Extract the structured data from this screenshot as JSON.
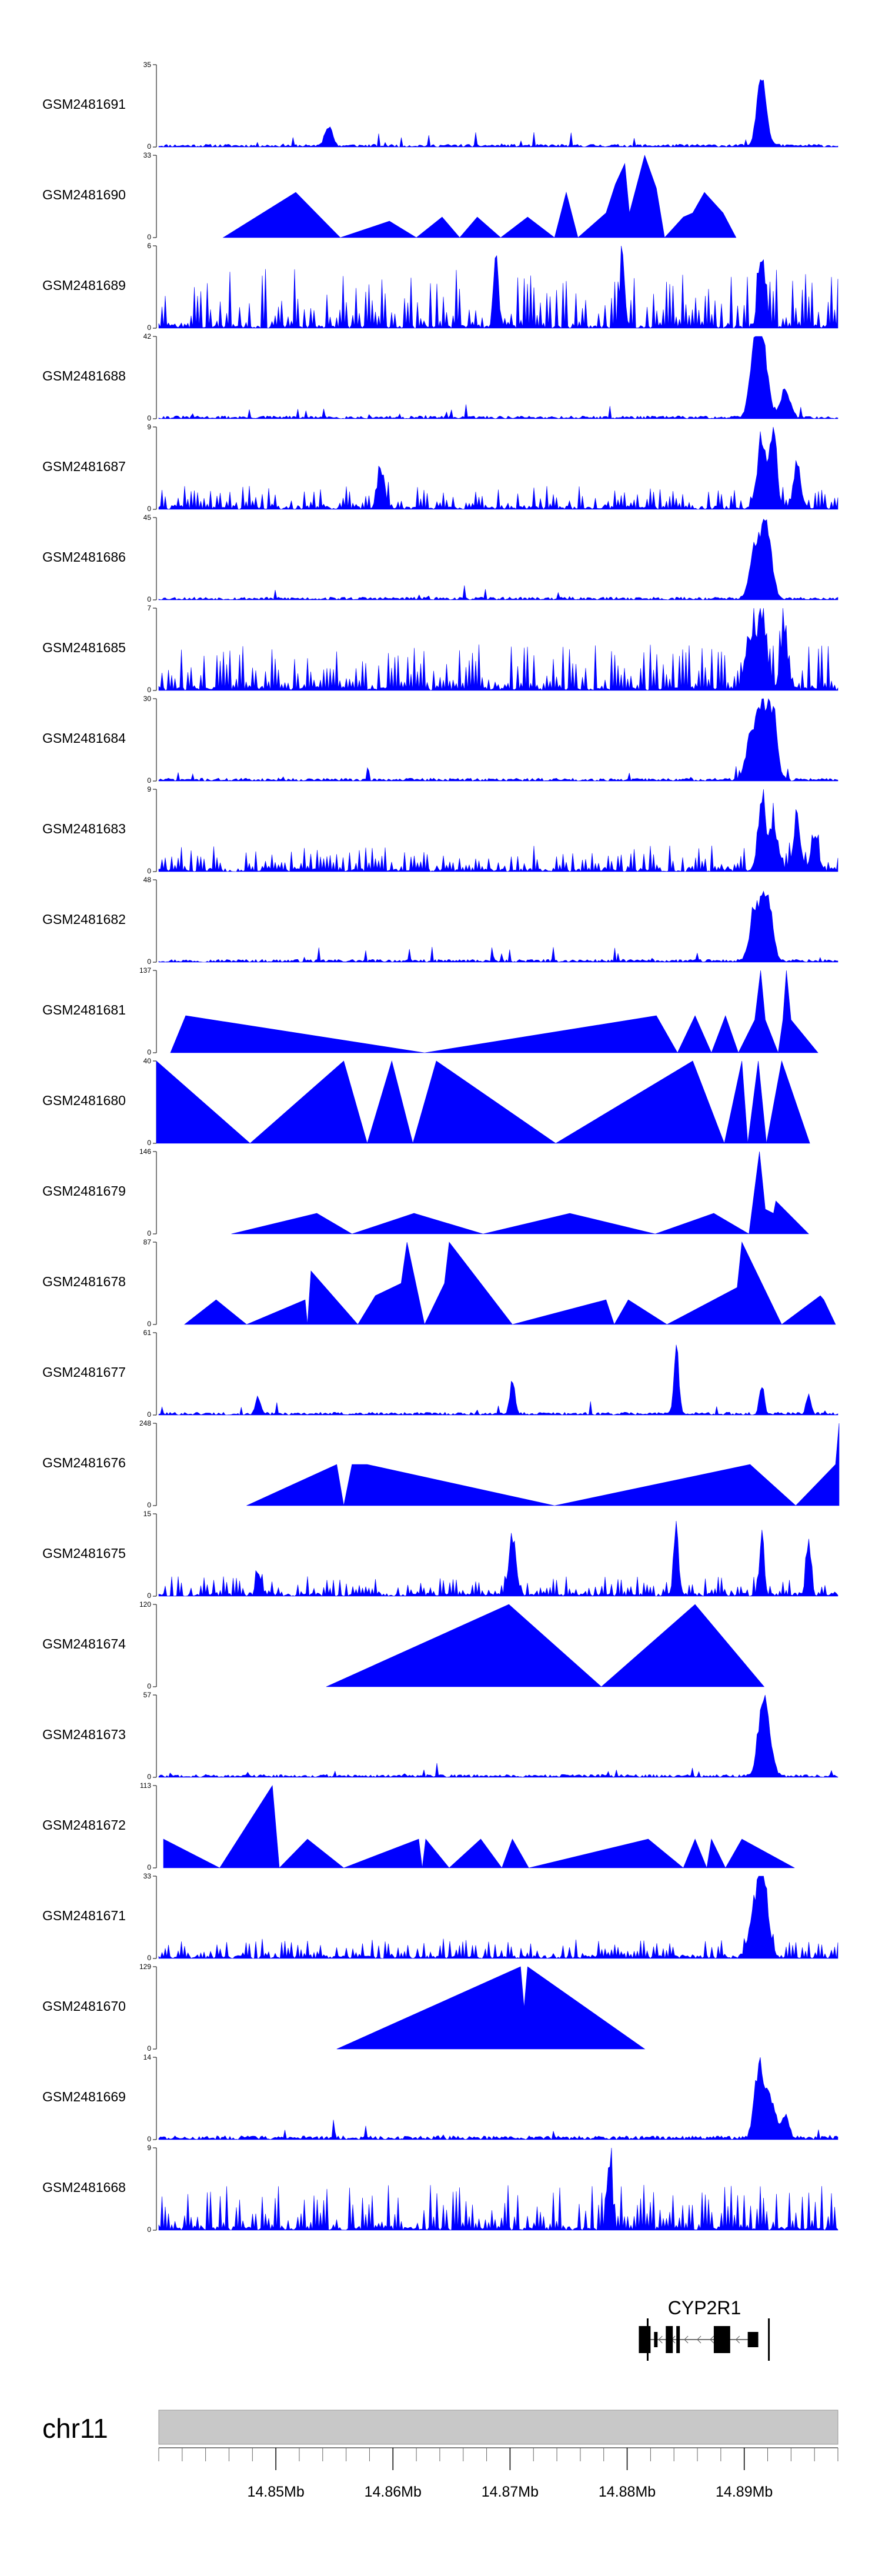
{
  "chart_data": {
    "type": "area",
    "title": "",
    "x_range": [
      14.84,
      14.898
    ],
    "x_unit": "Mb",
    "color": "#0000ff",
    "tracks": [
      {
        "label": "GSM2481691",
        "ymax": "35",
        "profile": "peaky",
        "seed": 11,
        "peaks": [
          [
            14.8915,
            1.0,
            0.0004
          ],
          [
            14.8545,
            0.3,
            0.0003
          ]
        ]
      },
      {
        "label": "GSM2481690",
        "ymax": "33",
        "profile": "triangles",
        "points": [
          [
            14.8455,
            0
          ],
          [
            14.8517,
            0.55
          ],
          [
            14.8555,
            0
          ],
          [
            14.8597,
            0.2
          ],
          [
            14.862,
            0
          ],
          [
            14.8642,
            0.25
          ],
          [
            14.8657,
            0
          ],
          [
            14.8672,
            0.25
          ],
          [
            14.8692,
            0
          ],
          [
            14.8715,
            0.25
          ],
          [
            14.8738,
            0
          ],
          [
            14.8748,
            0.55
          ],
          [
            14.8758,
            0
          ],
          [
            14.8782,
            0.3
          ],
          [
            14.879,
            0.65
          ],
          [
            14.8798,
            0.9
          ],
          [
            14.8802,
            0.3
          ],
          [
            14.8815,
            1.0
          ],
          [
            14.8825,
            0.6
          ],
          [
            14.8832,
            0
          ],
          [
            14.8848,
            0.25
          ],
          [
            14.8856,
            0.3
          ],
          [
            14.8866,
            0.55
          ],
          [
            14.8882,
            0.3
          ],
          [
            14.8893,
            0
          ]
        ]
      },
      {
        "label": "GSM2481689",
        "ymax": "6",
        "profile": "dense",
        "seed": 23,
        "base": 0.45,
        "peaks": [
          [
            14.8688,
            1.0,
            0.0002
          ],
          [
            14.8796,
            0.9,
            0.0002
          ],
          [
            14.8915,
            1.0,
            0.0003
          ]
        ]
      },
      {
        "label": "GSM2481688",
        "ymax": "42",
        "profile": "peaky",
        "seed": 31,
        "peaks": [
          [
            14.8915,
            1.0,
            0.0005
          ],
          [
            14.8908,
            0.65,
            0.0004
          ],
          [
            14.8935,
            0.4,
            0.0004
          ]
        ]
      },
      {
        "label": "GSM2481687",
        "ymax": "9",
        "profile": "dense",
        "seed": 41,
        "base": 0.18,
        "peaks": [
          [
            14.8915,
            0.9,
            0.0004
          ],
          [
            14.8925,
            1.0,
            0.0003
          ],
          [
            14.8945,
            0.6,
            0.0003
          ],
          [
            14.859,
            0.5,
            0.0003
          ]
        ]
      },
      {
        "label": "GSM2481686",
        "ymax": "45",
        "profile": "peaky",
        "seed": 53,
        "peaks": [
          [
            14.8918,
            1.0,
            0.0005
          ],
          [
            14.8908,
            0.55,
            0.0004
          ]
        ]
      },
      {
        "label": "GSM2481685",
        "ymax": "7",
        "profile": "dense",
        "seed": 61,
        "base": 0.35,
        "peaks": [
          [
            14.8915,
            1.0,
            0.0004
          ],
          [
            14.8905,
            0.7,
            0.0004
          ],
          [
            14.8934,
            0.8,
            0.0003
          ]
        ]
      },
      {
        "label": "GSM2481684",
        "ymax": "30",
        "profile": "peaky",
        "seed": 71,
        "peaks": [
          [
            14.8915,
            1.0,
            0.0005
          ],
          [
            14.8924,
            0.8,
            0.0004
          ],
          [
            14.8905,
            0.5,
            0.0004
          ]
        ]
      },
      {
        "label": "GSM2481683",
        "ymax": "9",
        "profile": "dense",
        "seed": 83,
        "base": 0.2,
        "peaks": [
          [
            14.8915,
            1.0,
            0.0003
          ],
          [
            14.8925,
            0.6,
            0.0004
          ],
          [
            14.8945,
            0.7,
            0.0003
          ],
          [
            14.896,
            0.5,
            0.0003
          ]
        ]
      },
      {
        "label": "GSM2481682",
        "ymax": "48",
        "profile": "peaky",
        "seed": 97,
        "peaks": [
          [
            14.8918,
            1.0,
            0.0005
          ],
          [
            14.8908,
            0.5,
            0.0004
          ]
        ]
      },
      {
        "label": "GSM2481681",
        "ymax": "137",
        "profile": "triangles",
        "points": [
          [
            14.841,
            0
          ],
          [
            14.8423,
            0.45
          ],
          [
            14.8627,
            0
          ],
          [
            14.8825,
            0.45
          ],
          [
            14.8843,
            0
          ],
          [
            14.8858,
            0.45
          ],
          [
            14.8872,
            0
          ],
          [
            14.8884,
            0.45
          ],
          [
            14.8895,
            0
          ],
          [
            14.8909,
            0.4
          ],
          [
            14.8914,
            1.0
          ],
          [
            14.8918,
            0.4
          ],
          [
            14.8929,
            0
          ],
          [
            14.8933,
            0.4
          ],
          [
            14.8936,
            1.0
          ],
          [
            14.894,
            0.4
          ],
          [
            14.8963,
            0
          ]
        ]
      },
      {
        "label": "GSM2481680",
        "ymax": "40",
        "profile": "triangles",
        "points": [
          [
            14.8398,
            1.0
          ],
          [
            14.8478,
            0
          ],
          [
            14.8558,
            1.0
          ],
          [
            14.8578,
            0
          ],
          [
            14.8599,
            1.0
          ],
          [
            14.8617,
            0
          ],
          [
            14.8637,
            1.0
          ],
          [
            14.8739,
            0
          ],
          [
            14.8856,
            1.0
          ],
          [
            14.8883,
            0
          ],
          [
            14.8898,
            1.0
          ],
          [
            14.8903,
            0
          ],
          [
            14.8912,
            1.0
          ],
          [
            14.8919,
            0
          ],
          [
            14.8932,
            1.0
          ],
          [
            14.8956,
            0
          ]
        ]
      },
      {
        "label": "GSM2481679",
        "ymax": "146",
        "profile": "triangles",
        "points": [
          [
            14.8462,
            0
          ],
          [
            14.8535,
            0.25
          ],
          [
            14.8565,
            0
          ],
          [
            14.8618,
            0.25
          ],
          [
            14.8677,
            0
          ],
          [
            14.8751,
            0.25
          ],
          [
            14.8824,
            0
          ],
          [
            14.8874,
            0.25
          ],
          [
            14.8904,
            0
          ],
          [
            14.8913,
            1.0
          ],
          [
            14.8918,
            0.3
          ],
          [
            14.8925,
            0.25
          ],
          [
            14.8927,
            0.4
          ],
          [
            14.8955,
            0
          ]
        ]
      },
      {
        "label": "GSM2481678",
        "ymax": "87",
        "profile": "triangles",
        "points": [
          [
            14.8422,
            0
          ],
          [
            14.8449,
            0.3
          ],
          [
            14.8475,
            0
          ],
          [
            14.8525,
            0.3
          ],
          [
            14.8527,
            0
          ],
          [
            14.853,
            0.65
          ],
          [
            14.857,
            0
          ],
          [
            14.8585,
            0.35
          ],
          [
            14.8607,
            0.5
          ],
          [
            14.8612,
            1.0
          ],
          [
            14.8627,
            0
          ],
          [
            14.8644,
            0.5
          ],
          [
            14.8648,
            1.0
          ],
          [
            14.8702,
            0
          ],
          [
            14.8782,
            0.3
          ],
          [
            14.8789,
            0
          ],
          [
            14.8801,
            0.3
          ],
          [
            14.8834,
            0
          ],
          [
            14.8894,
            0.45
          ],
          [
            14.8898,
            1.0
          ],
          [
            14.8932,
            0
          ],
          [
            14.8965,
            0.35
          ],
          [
            14.8968,
            0.3
          ],
          [
            14.8978,
            0
          ]
        ]
      },
      {
        "label": "GSM2481677",
        "ymax": "61",
        "profile": "peaky",
        "seed": 101,
        "peaks": [
          [
            14.8842,
            1.0,
            0.0002
          ],
          [
            14.8702,
            0.5,
            0.0002
          ],
          [
            14.8485,
            0.22,
            0.0002
          ],
          [
            14.8915,
            0.4,
            0.0002
          ],
          [
            14.8955,
            0.25,
            0.0002
          ]
        ]
      },
      {
        "label": "GSM2481676",
        "ymax": "248",
        "profile": "triangles",
        "points": [
          [
            14.8475,
            0
          ],
          [
            14.8552,
            0.5
          ],
          [
            14.8558,
            0
          ],
          [
            14.8565,
            0.5
          ],
          [
            14.8578,
            0.5
          ],
          [
            14.8738,
            0
          ],
          [
            14.8905,
            0.5
          ],
          [
            14.8944,
            0
          ],
          [
            14.8978,
            0.5
          ],
          [
            14.8981,
            1.0
          ]
        ]
      },
      {
        "label": "GSM2481675",
        "ymax": "15",
        "profile": "dense",
        "seed": 113,
        "base": 0.15,
        "peaks": [
          [
            14.8842,
            0.95,
            0.0002
          ],
          [
            14.8702,
            0.85,
            0.0003
          ],
          [
            14.8915,
            0.8,
            0.0002
          ],
          [
            14.8955,
            0.7,
            0.0002
          ],
          [
            14.8485,
            0.35,
            0.0002
          ]
        ]
      },
      {
        "label": "GSM2481674",
        "ymax": "120",
        "profile": "triangles",
        "points": [
          [
            14.8543,
            0
          ],
          [
            14.8699,
            1.0
          ],
          [
            14.8778,
            0
          ],
          [
            14.8858,
            1.0
          ],
          [
            14.8917,
            0
          ]
        ]
      },
      {
        "label": "GSM2481673",
        "ymax": "57",
        "profile": "peaky",
        "seed": 127,
        "peaks": [
          [
            14.8916,
            1.0,
            0.0004
          ],
          [
            14.8921,
            0.3,
            0.0004
          ]
        ]
      },
      {
        "label": "GSM2481672",
        "ymax": "113",
        "profile": "triangles",
        "points": [
          [
            14.8404,
            0.35
          ],
          [
            14.8452,
            0
          ],
          [
            14.8497,
            1.0
          ],
          [
            14.8503,
            0
          ],
          [
            14.8527,
            0.35
          ],
          [
            14.8558,
            0
          ],
          [
            14.8622,
            0.35
          ],
          [
            14.8625,
            0
          ],
          [
            14.8628,
            0.35
          ],
          [
            14.8648,
            0
          ],
          [
            14.8675,
            0.35
          ],
          [
            14.8693,
            0
          ],
          [
            14.8702,
            0.35
          ],
          [
            14.8716,
            0
          ],
          [
            14.8818,
            0.35
          ],
          [
            14.8848,
            0
          ],
          [
            14.8858,
            0.35
          ],
          [
            14.8868,
            0
          ],
          [
            14.8872,
            0.35
          ],
          [
            14.8884,
            0
          ],
          [
            14.8898,
            0.35
          ],
          [
            14.8943,
            0
          ]
        ]
      },
      {
        "label": "GSM2481671",
        "ymax": "33",
        "profile": "dense",
        "seed": 131,
        "base": 0.15,
        "peaks": [
          [
            14.8913,
            1.0,
            0.0004
          ],
          [
            14.8918,
            0.55,
            0.0004
          ],
          [
            14.8905,
            0.3,
            0.0003
          ]
        ]
      },
      {
        "label": "GSM2481670",
        "ymax": "129",
        "profile": "triangles",
        "points": [
          [
            14.8552,
            0
          ],
          [
            14.8709,
            1.0
          ],
          [
            14.8712,
            0.5
          ],
          [
            14.8715,
            1.0
          ],
          [
            14.8815,
            0
          ]
        ]
      },
      {
        "label": "GSM2481669",
        "ymax": "14",
        "profile": "peaky",
        "seed": 137,
        "base": 0.08,
        "peaks": [
          [
            14.8913,
            1.0,
            0.0004
          ],
          [
            14.8923,
            0.55,
            0.0004
          ],
          [
            14.8935,
            0.3,
            0.0003
          ]
        ]
      },
      {
        "label": "GSM2481668",
        "ymax": "9",
        "profile": "dense",
        "seed": 149,
        "base": 0.35,
        "peaks": [
          [
            14.8785,
            1.0,
            0.0002
          ]
        ]
      }
    ],
    "gene": {
      "name": "CYP2R1",
      "start": 14.881,
      "end": 14.8912,
      "strand": "-",
      "exons": [
        [
          14.881,
          14.882,
          "tall"
        ],
        [
          14.8823,
          14.8826,
          "small"
        ],
        [
          14.8833,
          14.8839,
          "tall"
        ],
        [
          14.8842,
          14.8845,
          "tall"
        ],
        [
          14.8874,
          14.8888,
          "tall"
        ],
        [
          14.8903,
          14.8912,
          "small"
        ]
      ]
    },
    "chromosome": "chr11",
    "xticks": [
      14.85,
      14.86,
      14.87,
      14.88,
      14.89
    ],
    "xtick_labels": [
      "14.85Mb",
      "14.86Mb",
      "14.87Mb",
      "14.88Mb",
      "14.89Mb"
    ],
    "minor_step": 0.002,
    "ytick_zero": "0"
  }
}
